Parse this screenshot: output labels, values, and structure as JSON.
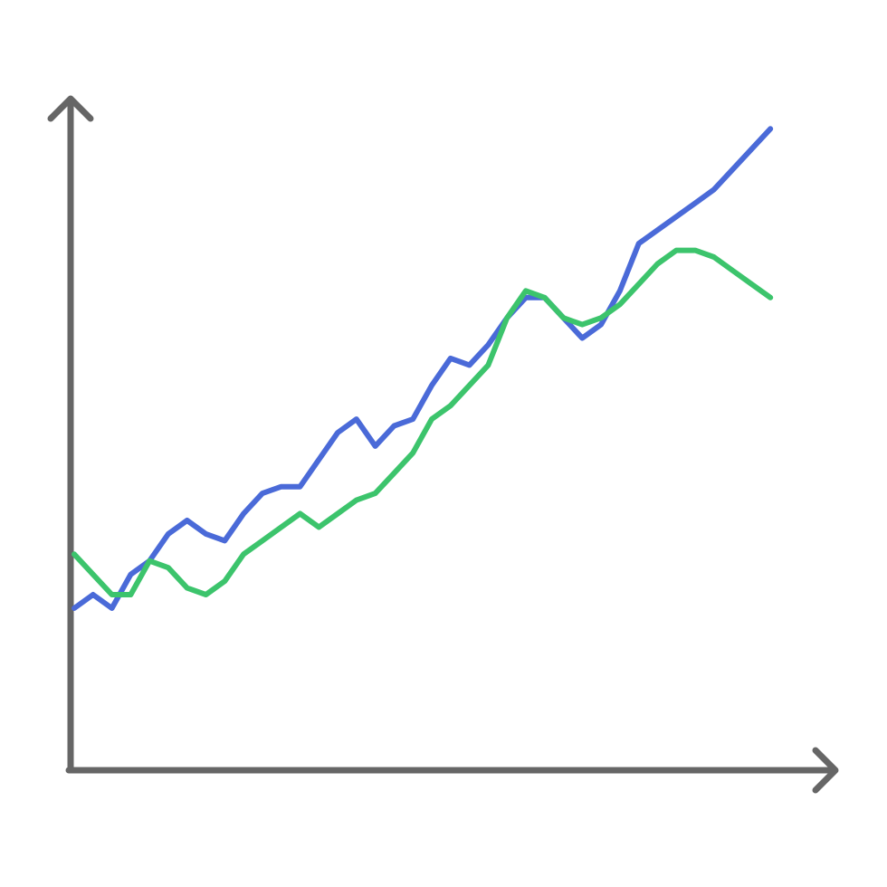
{
  "chart_data": {
    "type": "line",
    "title": "",
    "xlabel": "",
    "ylabel": "",
    "grid": false,
    "legend": "none",
    "axis_color": "#666666",
    "x": [
      0,
      1,
      2,
      3,
      4,
      5,
      6,
      7,
      8,
      9,
      10,
      11,
      12,
      13,
      14,
      15,
      16,
      17,
      18,
      19,
      20,
      21,
      22,
      23,
      24,
      25,
      26,
      27,
      28,
      29,
      30,
      31,
      32,
      33,
      34,
      35,
      36,
      37
    ],
    "xlim": [
      0,
      38
    ],
    "ylim": [
      0,
      1
    ],
    "series": [
      {
        "color": "#4a6ad8",
        "values": [
          0.24,
          0.26,
          0.24,
          0.29,
          0.31,
          0.35,
          0.37,
          0.35,
          0.34,
          0.38,
          0.41,
          0.42,
          0.42,
          0.46,
          0.5,
          0.52,
          0.48,
          0.51,
          0.52,
          0.57,
          0.61,
          0.6,
          0.63,
          0.67,
          0.7,
          0.7,
          0.67,
          0.64,
          0.66,
          0.71,
          0.78,
          0.8,
          0.82,
          0.84,
          0.86,
          0.89,
          0.92,
          0.95
        ]
      },
      {
        "color": "#3cc46c",
        "values": [
          0.32,
          0.29,
          0.26,
          0.26,
          0.31,
          0.3,
          0.27,
          0.26,
          0.28,
          0.32,
          0.34,
          0.36,
          0.38,
          0.36,
          0.38,
          0.4,
          0.41,
          0.44,
          0.47,
          0.52,
          0.54,
          0.57,
          0.6,
          0.67,
          0.71,
          0.7,
          0.67,
          0.66,
          0.67,
          0.69,
          0.72,
          0.75,
          0.77,
          0.77,
          0.76,
          0.74,
          0.72,
          0.7
        ]
      }
    ]
  }
}
